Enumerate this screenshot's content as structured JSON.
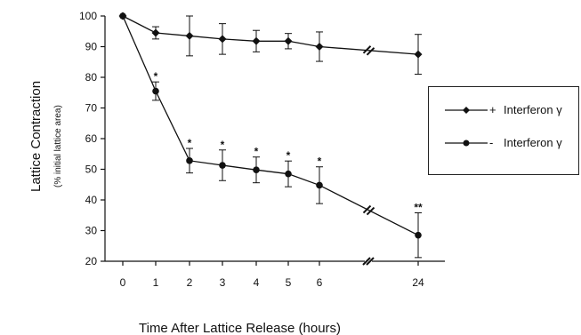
{
  "chart_data": {
    "type": "line",
    "xlabel": "Time After Lattice Release (hours)",
    "ylabel": "Lattice Contraction",
    "ylabel_sub": "(% initial lattice area)",
    "categories": [
      "0",
      "1",
      "2",
      "3",
      "4",
      "5",
      "6",
      "24"
    ],
    "yticks": [
      "20",
      "30",
      "40",
      "50",
      "60",
      "70",
      "80",
      "90",
      "100"
    ],
    "ylim": [
      20,
      100
    ],
    "axis_break": true,
    "series": [
      {
        "name": "Interferon γ",
        "sign": "+",
        "values": [
          100,
          94.5,
          93.5,
          92.5,
          91.8,
          91.8,
          90,
          87.5
        ],
        "errors": [
          0,
          2,
          6.5,
          5,
          3.5,
          2.5,
          4.8,
          6.5
        ]
      },
      {
        "name": "Interferon γ",
        "sign": "-",
        "values": [
          100,
          75.5,
          52.8,
          51.3,
          49.8,
          48.5,
          44.8,
          28.5
        ],
        "errors": [
          0,
          3,
          4,
          5,
          4.2,
          4.2,
          6,
          7.3
        ]
      }
    ],
    "significance": [
      "",
      "*",
      "*",
      "*",
      "*",
      "*",
      "*",
      "**"
    ],
    "grid": false,
    "legend": "right"
  }
}
